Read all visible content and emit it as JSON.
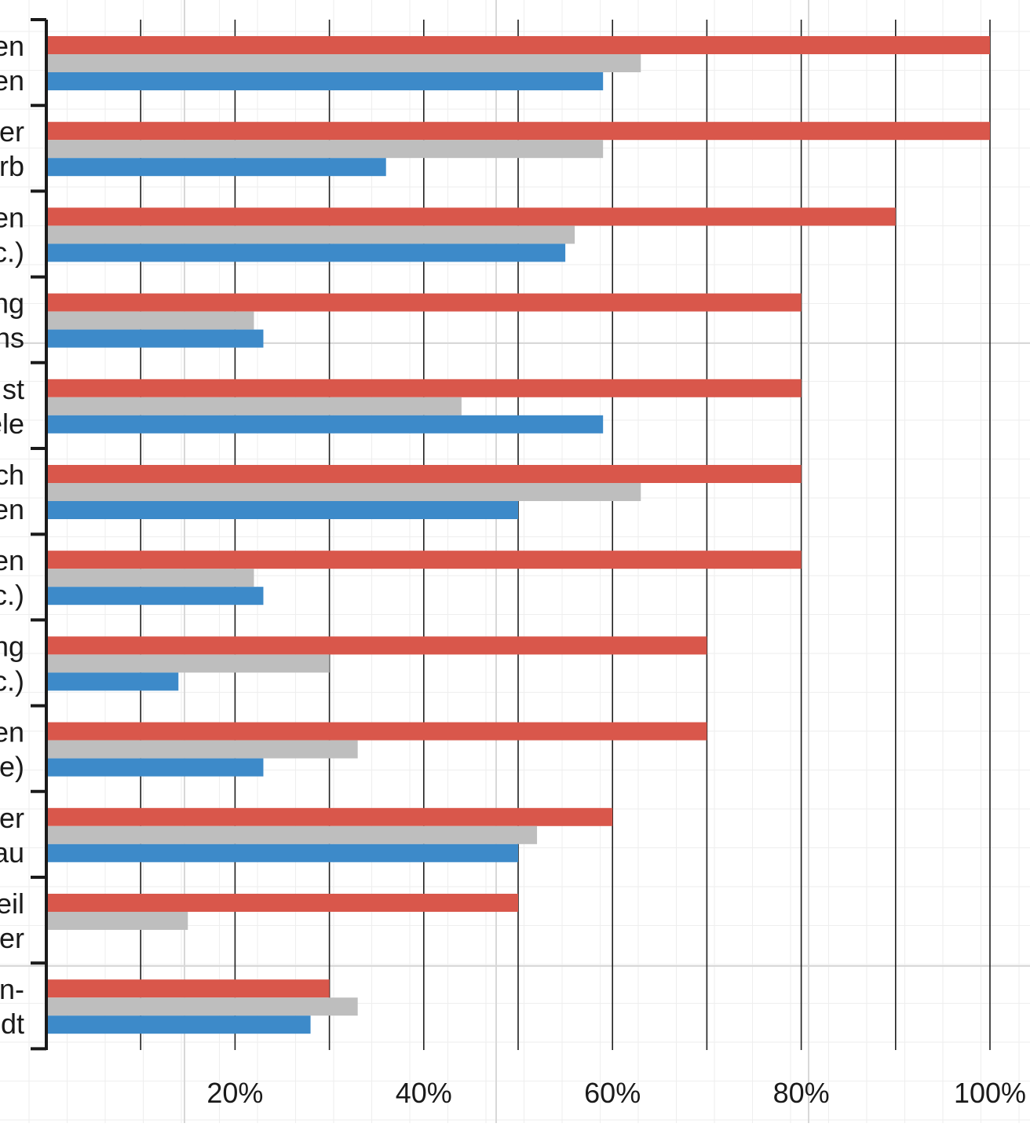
{
  "chart_data": {
    "type": "bar",
    "orientation": "horizontal",
    "title": "",
    "xlabel": "",
    "ylabel": "",
    "xlim": [
      0,
      100
    ],
    "x_tick_values": [
      20,
      40,
      60,
      80,
      100
    ],
    "x_tick_labels": [
      "20%",
      "40%",
      "60%",
      "80%",
      "100%"
    ],
    "grid": true,
    "legend": "none",
    "categories": [
      {
        "line1": "en",
        "line2": "en"
      },
      {
        "line1": "er",
        "line2": "rb"
      },
      {
        "line1": "en",
        "line2": "c.)"
      },
      {
        "line1": "ng",
        "line2": "ns"
      },
      {
        "line1": "st",
        "line2": "ele"
      },
      {
        "line1": "ch",
        "line2": "en"
      },
      {
        "line1": "en",
        "line2": "c.)"
      },
      {
        "line1": "ng",
        "line2": "c.)"
      },
      {
        "line1": "en",
        "line2": "te)"
      },
      {
        "line1": "er",
        "line2": "au"
      },
      {
        "line1": "eil",
        "line2": "er"
      },
      {
        "line1": "n-",
        "line2": "dt"
      }
    ],
    "series": [
      {
        "color": "#d9574b",
        "values": [
          100,
          100,
          90,
          80,
          80,
          80,
          80,
          70,
          70,
          60,
          50,
          30
        ]
      },
      {
        "color": "#bebebe",
        "values": [
          63,
          59,
          56,
          22,
          44,
          63,
          22,
          30,
          33,
          52,
          15,
          33
        ]
      },
      {
        "color": "#3d8ac9",
        "values": [
          59,
          36,
          55,
          23,
          59,
          50,
          23,
          14,
          23,
          50,
          null,
          28
        ]
      }
    ]
  }
}
